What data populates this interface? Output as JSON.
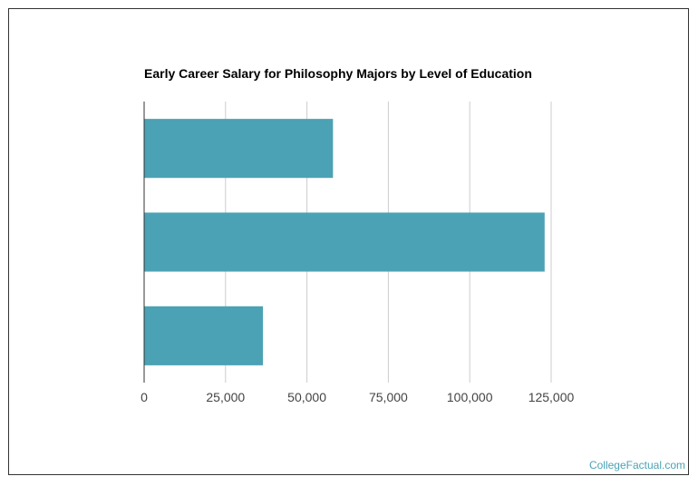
{
  "chart_data": {
    "type": "bar",
    "orientation": "horizontal",
    "title": "Early Career Salary for Philosophy Majors by Level of Education",
    "xlabel": "",
    "ylabel": "",
    "categories": [
      "",
      "",
      ""
    ],
    "values": [
      58000,
      123000,
      36500
    ],
    "xlim": [
      0,
      125000
    ],
    "x_ticks": [
      0,
      25000,
      50000,
      75000,
      100000,
      125000
    ],
    "x_tick_labels": [
      "0",
      "25,000",
      "50,000",
      "75,000",
      "100,000",
      "125,000"
    ],
    "grid": "vertical",
    "legend": "none",
    "bar_color": "#4ba2b4",
    "grid_color": "#cccccc",
    "axis_color": "#333333"
  },
  "watermark": {
    "text": "CollegeFactual.com",
    "color": "#4aa3b5"
  }
}
